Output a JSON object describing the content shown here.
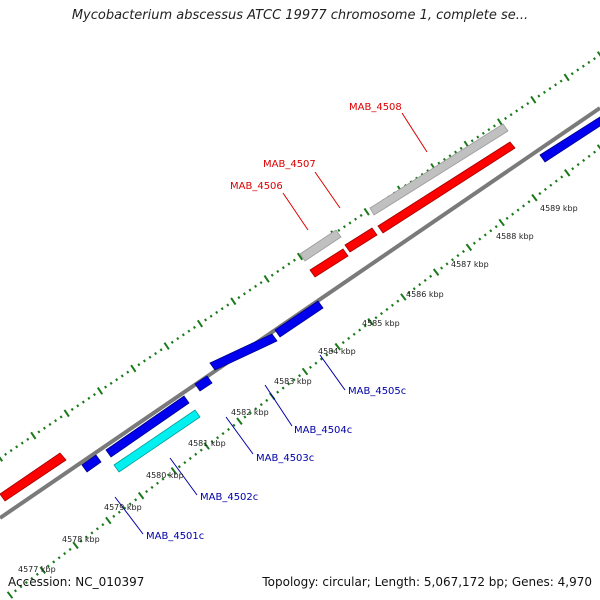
{
  "title": "Mycobacterium abscessus ATCC 19977 chromosome 1, complete se...",
  "footer": {
    "accession": "Accession: NC_010397",
    "summary": "Topology: circular; Length: 5,067,172 bp; Genes: 4,970"
  },
  "colors": {
    "backbone": "#7a7a7a",
    "ticks": "#1a7a1a",
    "gene_red": "#ff0000",
    "gene_blue": "#0000ee",
    "gene_grey": "#c0c0c0",
    "gene_cyan": "#00f0f0",
    "label_red": "#dd0000",
    "label_blue": "#0000aa"
  },
  "ticks": [
    "4577 kbp",
    "4578 kbp",
    "4579 kbp",
    "4580 kbp",
    "4581 kbp",
    "4582 kbp",
    "4583 kbp",
    "4584 kbp",
    "4585 kbp",
    "4586 kbp",
    "4587 kbp",
    "4588 kbp",
    "4589 kbp"
  ],
  "gene_labels": [
    {
      "text": "MAB_4508",
      "color": "red"
    },
    {
      "text": "MAB_4507",
      "color": "red"
    },
    {
      "text": "MAB_4506",
      "color": "red"
    },
    {
      "text": "MAB_4505c",
      "color": "blue"
    },
    {
      "text": "MAB_4504c",
      "color": "blue"
    },
    {
      "text": "MAB_4503c",
      "color": "blue"
    },
    {
      "text": "MAB_4502c",
      "color": "blue"
    },
    {
      "text": "MAB_4501c",
      "color": "blue"
    }
  ]
}
